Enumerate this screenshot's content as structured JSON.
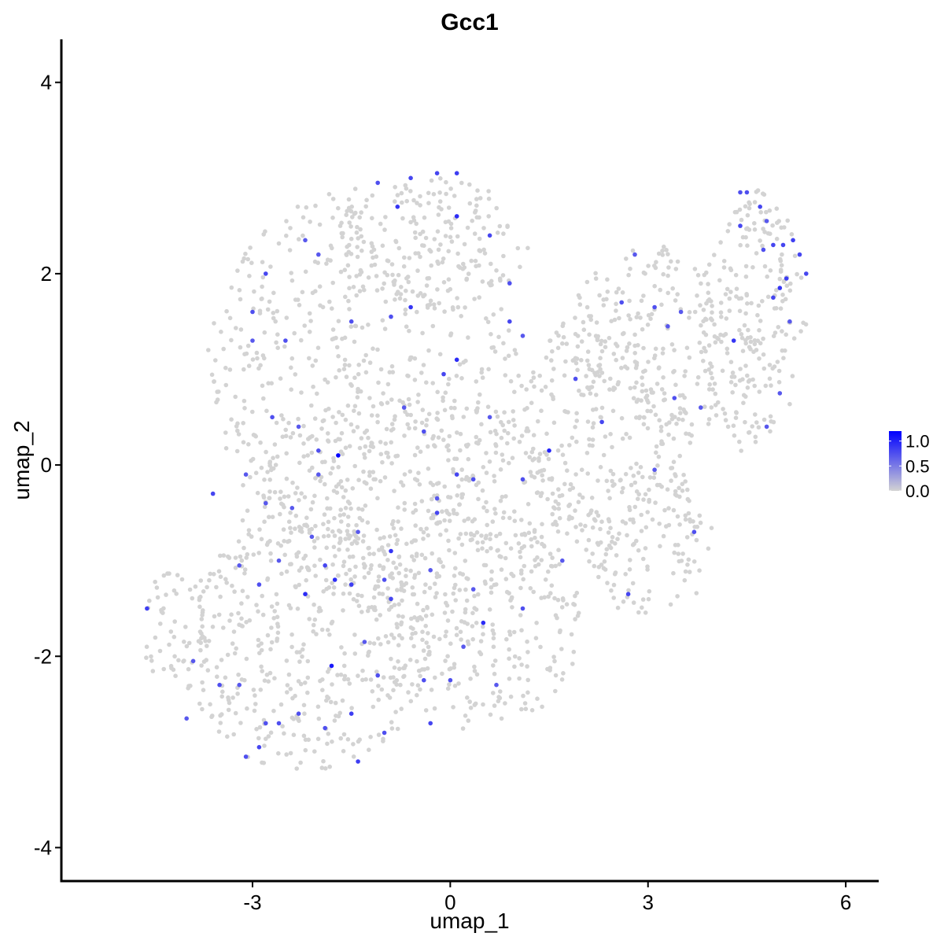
{
  "chart_data": {
    "type": "scatter",
    "title": "Gcc1",
    "xlabel": "umap_1",
    "ylabel": "umap_2",
    "xlim": [
      -5.9,
      6.5
    ],
    "ylim": [
      -4.35,
      4.45
    ],
    "x_ticks": [
      -3,
      0,
      3,
      6
    ],
    "x_tick_labels": [
      "-3",
      "0",
      "3",
      "6"
    ],
    "y_ticks": [
      -4,
      -2,
      0,
      2,
      4
    ],
    "y_tick_labels": [
      "-4",
      "-2",
      "0",
      "2",
      "4"
    ],
    "grid": false,
    "legend": {
      "placement": "right",
      "range": [
        0,
        1.2
      ],
      "ticks": [
        0,
        0.5,
        1.0
      ],
      "tick_labels": [
        "0.0",
        "0.5",
        "1.0"
      ]
    },
    "color_low": "#d3d3d3",
    "color_high": "#0000ff",
    "expressing_points": [
      [
        -3.6,
        -0.3,
        0.8
      ],
      [
        -4.6,
        -1.5,
        0.85
      ],
      [
        -1.7,
        0.1,
        1.2
      ],
      [
        1.5,
        0.15,
        1.0
      ],
      [
        -1.8,
        -2.1,
        1.05
      ],
      [
        0.5,
        -1.65,
        0.95
      ],
      [
        0.1,
        2.6,
        0.95
      ],
      [
        -0.8,
        2.7,
        0.9
      ],
      [
        -0.6,
        3.0,
        0.8
      ],
      [
        -0.2,
        3.05,
        0.8
      ],
      [
        0.1,
        3.05,
        0.85
      ],
      [
        -1.1,
        2.95,
        0.75
      ],
      [
        -0.6,
        1.65,
        0.9
      ],
      [
        0.1,
        1.1,
        0.95
      ],
      [
        -0.1,
        0.95,
        0.8
      ],
      [
        -1.4,
        -3.1,
        0.85
      ],
      [
        -1.5,
        -2.6,
        0.85
      ],
      [
        -2.2,
        -1.35,
        0.95
      ],
      [
        -1.75,
        -1.2,
        0.95
      ],
      [
        -0.9,
        -0.9,
        0.9
      ],
      [
        -0.2,
        -0.5,
        0.8
      ],
      [
        0.1,
        -0.1,
        0.8
      ],
      [
        -2.0,
        0.15,
        0.75
      ],
      [
        -2.3,
        0.4,
        0.7
      ],
      [
        -2.5,
        1.3,
        0.75
      ],
      [
        -2.8,
        2.0,
        0.8
      ],
      [
        -3.0,
        1.6,
        0.75
      ],
      [
        -3.0,
        1.3,
        0.7
      ],
      [
        -2.2,
        2.35,
        0.7
      ],
      [
        -2.0,
        2.2,
        0.7
      ],
      [
        -1.5,
        1.5,
        0.75
      ],
      [
        -0.9,
        1.55,
        0.75
      ],
      [
        0.6,
        2.4,
        0.8
      ],
      [
        0.9,
        1.9,
        0.75
      ],
      [
        0.9,
        1.5,
        0.8
      ],
      [
        1.1,
        1.35,
        0.7
      ],
      [
        1.9,
        0.9,
        0.75
      ],
      [
        2.3,
        0.45,
        0.8
      ],
      [
        2.6,
        1.7,
        0.75
      ],
      [
        3.1,
        1.65,
        0.75
      ],
      [
        3.5,
        1.6,
        0.7
      ],
      [
        2.8,
        2.2,
        0.7
      ],
      [
        3.3,
        1.45,
        0.7
      ],
      [
        4.3,
        1.3,
        0.9
      ],
      [
        4.4,
        2.5,
        0.8
      ],
      [
        4.5,
        2.85,
        0.75
      ],
      [
        4.7,
        2.7,
        0.8
      ],
      [
        4.75,
        2.25,
        0.75
      ],
      [
        4.9,
        2.3,
        0.8
      ],
      [
        5.05,
        2.3,
        0.8
      ],
      [
        5.2,
        2.35,
        0.85
      ],
      [
        5.3,
        2.2,
        0.8
      ],
      [
        5.4,
        2.0,
        0.8
      ],
      [
        5.1,
        1.95,
        0.85
      ],
      [
        5.0,
        1.85,
        0.9
      ],
      [
        4.9,
        1.75,
        0.8
      ],
      [
        5.15,
        1.5,
        0.7
      ],
      [
        4.4,
        2.85,
        0.75
      ],
      [
        4.8,
        2.55,
        0.7
      ],
      [
        5.0,
        0.75,
        0.7
      ],
      [
        4.8,
        0.4,
        0.7
      ],
      [
        3.4,
        0.7,
        0.75
      ],
      [
        3.8,
        0.6,
        0.7
      ],
      [
        3.1,
        -0.05,
        0.7
      ],
      [
        3.7,
        -0.7,
        0.75
      ],
      [
        2.7,
        -1.35,
        0.8
      ],
      [
        1.1,
        -0.15,
        0.75
      ],
      [
        0.35,
        -0.15,
        0.75
      ],
      [
        -0.2,
        -0.35,
        0.7
      ],
      [
        -0.3,
        -2.7,
        0.8
      ],
      [
        0.0,
        -2.25,
        0.75
      ],
      [
        -0.4,
        -2.25,
        0.75
      ],
      [
        -0.9,
        -1.4,
        0.8
      ],
      [
        -1.0,
        -1.2,
        0.75
      ],
      [
        -1.1,
        -2.2,
        0.75
      ],
      [
        -1.5,
        -1.25,
        0.85
      ],
      [
        -2.9,
        -2.95,
        0.8
      ],
      [
        -3.1,
        -3.05,
        0.75
      ],
      [
        -2.8,
        -2.7,
        0.75
      ],
      [
        -2.6,
        -2.7,
        0.75
      ],
      [
        -3.5,
        -2.3,
        0.75
      ],
      [
        -3.2,
        -2.3,
        0.7
      ],
      [
        -2.3,
        -2.6,
        0.75
      ],
      [
        -1.9,
        -2.75,
        0.75
      ],
      [
        -3.9,
        -2.05,
        0.7
      ],
      [
        -4.0,
        -2.65,
        0.7
      ],
      [
        -2.9,
        -1.25,
        0.75
      ],
      [
        -2.6,
        -1.0,
        0.7
      ],
      [
        -3.2,
        -1.05,
        0.7
      ],
      [
        -2.8,
        -0.4,
        0.7
      ],
      [
        -2.4,
        -0.45,
        0.7
      ],
      [
        -2.1,
        -0.75,
        0.7
      ],
      [
        -1.4,
        -0.7,
        0.7
      ],
      [
        -3.1,
        -0.1,
        0.7
      ],
      [
        -2.7,
        0.5,
        0.75
      ],
      [
        -0.7,
        0.6,
        0.7
      ],
      [
        -0.4,
        0.35,
        0.75
      ],
      [
        0.6,
        0.5,
        0.7
      ],
      [
        1.7,
        -1.0,
        0.7
      ],
      [
        0.7,
        -2.3,
        0.7
      ],
      [
        1.1,
        -1.5,
        0.75
      ],
      [
        -1.0,
        -2.8,
        0.75
      ],
      [
        -1.9,
        -1.05,
        0.8
      ],
      [
        -2.0,
        -0.1,
        0.7
      ],
      [
        -0.3,
        -1.1,
        0.7
      ],
      [
        0.2,
        -1.9,
        0.7
      ],
      [
        0.35,
        -1.3,
        0.7
      ],
      [
        -1.3,
        -1.85,
        0.7
      ]
    ]
  }
}
